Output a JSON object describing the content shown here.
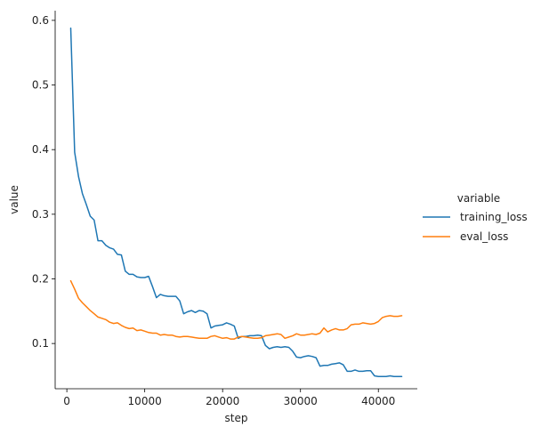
{
  "chart_data": {
    "type": "line",
    "title": "",
    "xlabel": "step",
    "ylabel": "value",
    "xlim": [
      -1500,
      45000
    ],
    "ylim": [
      0.03,
      0.615
    ],
    "xticks": [
      0,
      10000,
      20000,
      30000,
      40000
    ],
    "xtick_labels": [
      "0",
      "10000",
      "20000",
      "30000",
      "40000"
    ],
    "yticks": [
      0.1,
      0.2,
      0.3,
      0.4,
      0.5,
      0.6
    ],
    "ytick_labels": [
      "0.1",
      "0.2",
      "0.3",
      "0.4",
      "0.5",
      "0.6"
    ],
    "grid": false,
    "legend": {
      "title": "variable",
      "placement": "right"
    },
    "series": [
      {
        "name": "training_loss",
        "color": "#1f77b4",
        "x": [
          500,
          1000,
          1500,
          2000,
          2500,
          3000,
          3500,
          4000,
          4500,
          5000,
          5500,
          6000,
          6500,
          7000,
          7500,
          8000,
          8500,
          9000,
          9500,
          10000,
          10500,
          11000,
          11500,
          12000,
          12500,
          13000,
          13500,
          14000,
          14500,
          15000,
          15500,
          16000,
          16500,
          17000,
          17500,
          18000,
          18500,
          19000,
          19500,
          20000,
          20500,
          21000,
          21500,
          22000,
          22500,
          23000,
          23500,
          24000,
          24500,
          25000,
          25500,
          26000,
          26500,
          27000,
          27500,
          28000,
          28500,
          29000,
          29500,
          30000,
          30500,
          31000,
          31500,
          32000,
          32500,
          33000,
          33500,
          34000,
          34500,
          35000,
          35500,
          36000,
          36500,
          37000,
          37500,
          38000,
          38500,
          39000,
          39500,
          40000,
          40500,
          41000,
          41500,
          42000,
          42500,
          43000
        ],
        "values": [
          0.588,
          0.396,
          0.358,
          0.332,
          0.315,
          0.297,
          0.291,
          0.259,
          0.259,
          0.252,
          0.248,
          0.246,
          0.238,
          0.237,
          0.212,
          0.207,
          0.207,
          0.203,
          0.202,
          0.202,
          0.204,
          0.188,
          0.171,
          0.176,
          0.174,
          0.173,
          0.173,
          0.173,
          0.166,
          0.146,
          0.149,
          0.151,
          0.148,
          0.151,
          0.15,
          0.146,
          0.124,
          0.127,
          0.128,
          0.129,
          0.132,
          0.13,
          0.127,
          0.108,
          0.111,
          0.111,
          0.112,
          0.112,
          0.113,
          0.112,
          0.097,
          0.092,
          0.094,
          0.095,
          0.094,
          0.095,
          0.094,
          0.088,
          0.079,
          0.078,
          0.08,
          0.081,
          0.08,
          0.078,
          0.065,
          0.066,
          0.066,
          0.068,
          0.069,
          0.07,
          0.067,
          0.057,
          0.057,
          0.059,
          0.057,
          0.057,
          0.058,
          0.058,
          0.05,
          0.049,
          0.049,
          0.049,
          0.05,
          0.049,
          0.049,
          0.049
        ]
      },
      {
        "name": "eval_loss",
        "color": "#ff7f0e",
        "x": [
          500,
          1000,
          1500,
          2000,
          2500,
          3000,
          3500,
          4000,
          4500,
          5000,
          5500,
          6000,
          6500,
          7000,
          7500,
          8000,
          8500,
          9000,
          9500,
          10000,
          10500,
          11000,
          11500,
          12000,
          12500,
          13000,
          13500,
          14000,
          14500,
          15000,
          15500,
          16000,
          16500,
          17000,
          17500,
          18000,
          18500,
          19000,
          19500,
          20000,
          20500,
          21000,
          21500,
          22000,
          22500,
          23000,
          23500,
          24000,
          24500,
          25000,
          25500,
          26000,
          26500,
          27000,
          27500,
          28000,
          28500,
          29000,
          29500,
          30000,
          30500,
          31000,
          31500,
          32000,
          32500,
          33000,
          33500,
          34000,
          34500,
          35000,
          35500,
          36000,
          36500,
          37000,
          37500,
          38000,
          38500,
          39000,
          39500,
          40000,
          40500,
          41000,
          41500,
          42000,
          42500,
          43000
        ],
        "values": [
          0.197,
          0.184,
          0.17,
          0.163,
          0.157,
          0.151,
          0.146,
          0.141,
          0.139,
          0.137,
          0.133,
          0.131,
          0.132,
          0.128,
          0.125,
          0.123,
          0.124,
          0.12,
          0.121,
          0.119,
          0.117,
          0.116,
          0.116,
          0.113,
          0.114,
          0.113,
          0.113,
          0.111,
          0.11,
          0.111,
          0.111,
          0.11,
          0.109,
          0.108,
          0.108,
          0.108,
          0.111,
          0.112,
          0.11,
          0.108,
          0.109,
          0.107,
          0.107,
          0.11,
          0.111,
          0.11,
          0.109,
          0.108,
          0.108,
          0.109,
          0.112,
          0.113,
          0.114,
          0.115,
          0.114,
          0.108,
          0.11,
          0.112,
          0.115,
          0.113,
          0.113,
          0.114,
          0.115,
          0.114,
          0.116,
          0.124,
          0.118,
          0.121,
          0.123,
          0.121,
          0.121,
          0.123,
          0.129,
          0.13,
          0.13,
          0.132,
          0.131,
          0.13,
          0.131,
          0.134,
          0.14,
          0.142,
          0.143,
          0.142,
          0.142,
          0.143
        ]
      }
    ]
  }
}
